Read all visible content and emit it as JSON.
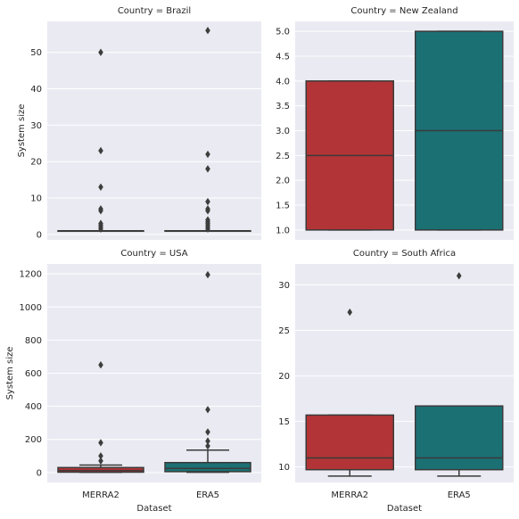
{
  "figure": {
    "xlabel": "Dataset",
    "ylabel": "System size"
  },
  "colors": {
    "background": "#eaeaf2",
    "grid": "#ffffff",
    "line": "#3a3a3a",
    "MERRA2": "#b33436",
    "ERA5": "#1b7074"
  },
  "chart_data": [
    {
      "type": "box",
      "title": "Country = Brazil",
      "xlabel": "",
      "ylabel": "System size",
      "categories": [
        "MERRA2",
        "ERA5"
      ],
      "ylim": [
        -1.5,
        58.5
      ],
      "yticks": [
        0,
        10,
        20,
        30,
        40,
        50
      ],
      "show_xticklabels": false,
      "boxes": [
        {
          "name": "MERRA2",
          "q1": 1,
          "median": 1,
          "q3": 1,
          "whisker_low": 1,
          "whisker_high": 1,
          "outliers": [
            1.5,
            2,
            2.5,
            3,
            6.5,
            7,
            13,
            23,
            50
          ]
        },
        {
          "name": "ERA5",
          "q1": 1,
          "median": 1,
          "q3": 1,
          "whisker_low": 1,
          "whisker_high": 1,
          "outliers": [
            1.5,
            2,
            2.5,
            3,
            3.5,
            4,
            6.5,
            7,
            9,
            18,
            22,
            56
          ]
        }
      ]
    },
    {
      "type": "box",
      "title": "Country = New Zealand",
      "xlabel": "",
      "ylabel": "",
      "categories": [
        "MERRA2",
        "ERA5"
      ],
      "ylim": [
        0.8,
        5.2
      ],
      "yticks": [
        1.0,
        1.5,
        2.0,
        2.5,
        3.0,
        3.5,
        4.0,
        4.5,
        5.0
      ],
      "show_xticklabels": false,
      "boxes": [
        {
          "name": "MERRA2",
          "q1": 1,
          "median": 2.5,
          "q3": 4,
          "whisker_low": 1,
          "whisker_high": 4,
          "outliers": []
        },
        {
          "name": "ERA5",
          "q1": 1,
          "median": 3,
          "q3": 5,
          "whisker_low": 1,
          "whisker_high": 5,
          "outliers": []
        }
      ]
    },
    {
      "type": "box",
      "title": "Country = USA",
      "xlabel": "Dataset",
      "ylabel": "System size",
      "categories": [
        "MERRA2",
        "ERA5"
      ],
      "ylim": [
        -60,
        1260
      ],
      "yticks": [
        0,
        200,
        400,
        600,
        800,
        1000,
        1200
      ],
      "show_xticklabels": true,
      "boxes": [
        {
          "name": "MERRA2",
          "q1": 2,
          "median": 12,
          "q3": 30,
          "whisker_low": 1,
          "whisker_high": 45,
          "outliers": [
            70,
            100,
            180,
            650
          ]
        },
        {
          "name": "ERA5",
          "q1": 5,
          "median": 25,
          "q3": 60,
          "whisker_low": 1,
          "whisker_high": 135,
          "outliers": [
            160,
            190,
            245,
            380,
            1195
          ]
        }
      ]
    },
    {
      "type": "box",
      "title": "Country = South Africa",
      "xlabel": "Dataset",
      "ylabel": "",
      "categories": [
        "MERRA2",
        "ERA5"
      ],
      "ylim": [
        8.3,
        32.3
      ],
      "yticks": [
        10,
        15,
        20,
        25,
        30
      ],
      "show_xticklabels": true,
      "boxes": [
        {
          "name": "MERRA2",
          "q1": 9.7,
          "median": 11,
          "q3": 15.7,
          "whisker_low": 9,
          "whisker_high": 15.7,
          "outliers": [
            27
          ]
        },
        {
          "name": "ERA5",
          "q1": 9.7,
          "median": 11,
          "q3": 16.7,
          "whisker_low": 9,
          "whisker_high": 16.7,
          "outliers": [
            31
          ]
        }
      ]
    }
  ]
}
